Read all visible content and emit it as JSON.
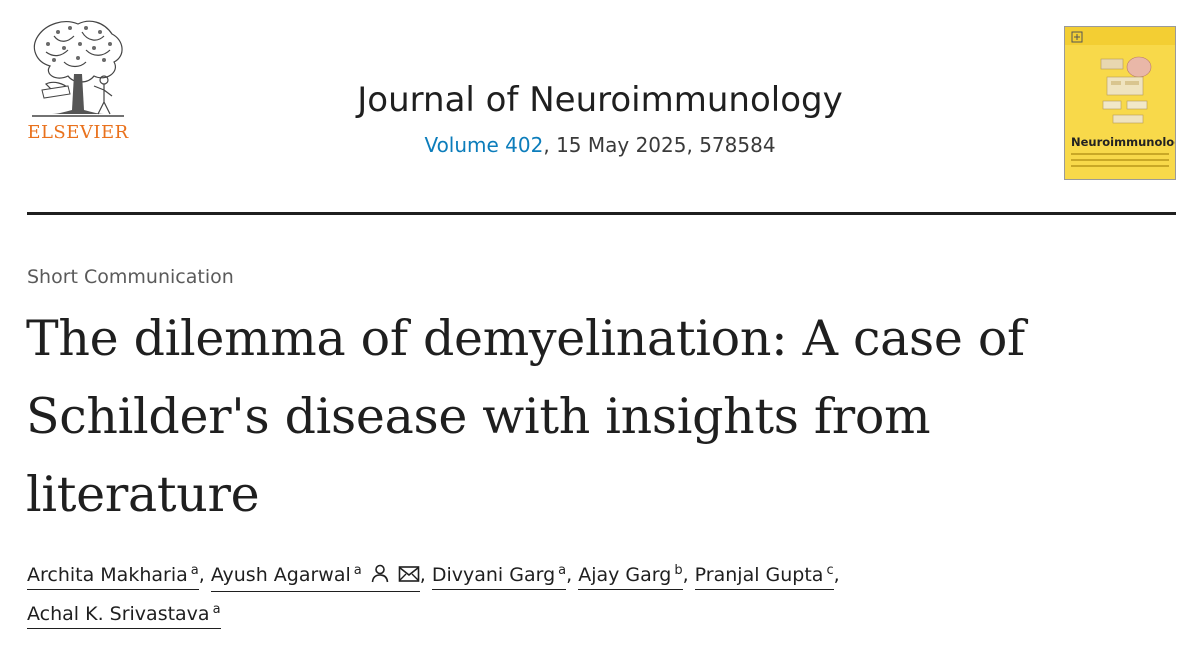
{
  "header": {
    "publisher": {
      "name": "ELSEVIER",
      "logo_icon": "elsevier-tree-logo",
      "brand_color": "#e9711c"
    },
    "journal": {
      "title": "Journal of Neuroimmunology",
      "volume_label": "Volume 402",
      "issue_suffix": ", 15 May 2025, 578584",
      "link_color": "#0c7dbb"
    },
    "cover": {
      "title": "Neuroimmunology",
      "background_color": "#f8d94a"
    }
  },
  "article": {
    "type": "Short Communication",
    "title": "The dilemma of demyelination: A case of Schilder's disease with insights from literature",
    "authors": [
      {
        "name": "Archita Makharia",
        "affil": "a",
        "separator": ", "
      },
      {
        "name": "Ayush Agarwal",
        "affil": "a",
        "separator": ", ",
        "icons": [
          "person-icon",
          "mail-icon"
        ]
      },
      {
        "name": "Divyani Garg",
        "affil": "a",
        "separator": ", "
      },
      {
        "name": "Ajay Garg",
        "affil": "b",
        "separator": ", "
      },
      {
        "name": "Pranjal Gupta",
        "affil": "c",
        "separator": ","
      },
      {
        "name": "Achal K. Srivastava",
        "affil": "a",
        "separator": ""
      }
    ]
  }
}
